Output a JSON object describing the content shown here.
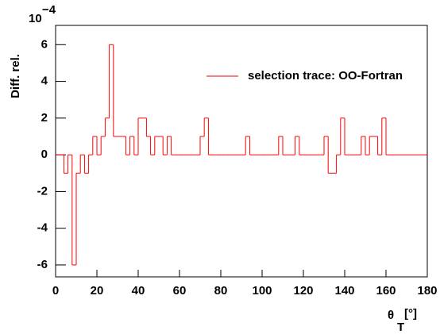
{
  "chart_data": {
    "type": "histogram",
    "y_label": "Diff. rel.",
    "y_multiplier": {
      "base": "10",
      "exponent": "−4"
    },
    "x_label": {
      "symbol": "θ",
      "subscript": "T",
      "unit": "[°]"
    },
    "series": [
      {
        "name": "selection trace: OO-Fortran",
        "color": "#ff0000",
        "values": [
          0,
          0,
          -1,
          0,
          -6,
          -1,
          0,
          -1,
          0,
          1,
          0,
          1,
          2,
          6,
          1,
          1,
          1,
          0,
          1,
          0,
          2,
          2,
          1,
          0,
          1,
          1,
          0,
          1,
          0,
          0,
          0,
          0,
          0,
          0,
          0,
          1,
          2,
          0,
          0,
          0,
          0,
          0,
          0,
          0,
          0,
          0,
          1,
          0,
          0,
          0,
          0,
          0,
          0,
          0,
          1,
          0,
          0,
          0,
          1,
          0,
          0,
          0,
          0,
          0,
          0,
          1,
          -1,
          -1,
          0,
          2,
          0,
          0,
          0,
          0,
          1,
          0,
          1,
          1,
          0,
          2,
          0,
          0,
          0,
          0,
          0,
          0,
          0,
          0,
          0,
          0
        ]
      }
    ],
    "bins": [
      0,
      2,
      4,
      6,
      8,
      10,
      12,
      14,
      16,
      18,
      20,
      22,
      24,
      26,
      28,
      30,
      32,
      34,
      36,
      38,
      40,
      42,
      44,
      46,
      48,
      50,
      52,
      54,
      56,
      58,
      60,
      62,
      64,
      66,
      68,
      70,
      72,
      74,
      76,
      78,
      80,
      82,
      84,
      86,
      88,
      90,
      92,
      94,
      96,
      98,
      100,
      102,
      104,
      106,
      108,
      110,
      112,
      114,
      116,
      118,
      120,
      122,
      124,
      126,
      128,
      130,
      132,
      134,
      136,
      138,
      140,
      142,
      144,
      146,
      148,
      150,
      152,
      154,
      156,
      158,
      160,
      162,
      164,
      166,
      168,
      170,
      172,
      174,
      176,
      178,
      180
    ],
    "xlim": [
      0,
      180
    ],
    "xticks": [
      0,
      20,
      40,
      60,
      80,
      100,
      120,
      140,
      160,
      180
    ],
    "ylim": [
      -6.65,
      7.05
    ],
    "yticks": [
      -6,
      -4,
      -2,
      0,
      2,
      4,
      6
    ],
    "legend": "upper right"
  }
}
